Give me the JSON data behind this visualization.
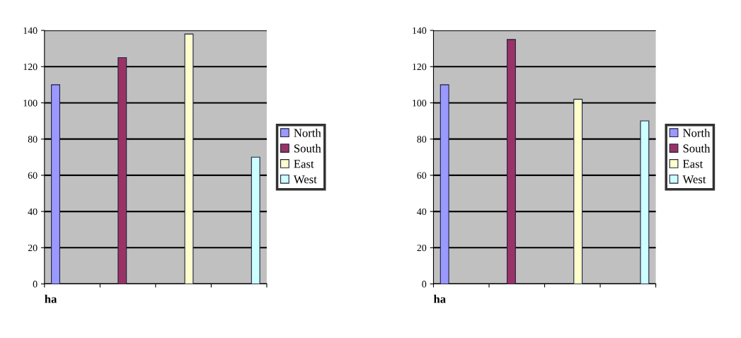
{
  "chart_data": [
    {
      "type": "bar",
      "categories": [
        null,
        null,
        null,
        null
      ],
      "xlabel": "ha",
      "ylim": [
        0,
        140
      ],
      "yticks": [
        0,
        20,
        40,
        60,
        80,
        100,
        120,
        140
      ],
      "grid": "y",
      "legend": "right",
      "series": [
        {
          "name": "North",
          "color": "#9999ff",
          "values": [
            110,
            null,
            null,
            null
          ]
        },
        {
          "name": "South",
          "color": "#993366",
          "values": [
            null,
            125,
            null,
            null
          ]
        },
        {
          "name": "East",
          "color": "#ffffcc",
          "values": [
            null,
            null,
            138,
            null
          ]
        },
        {
          "name": "West",
          "color": "#ccffff",
          "values": [
            null,
            null,
            null,
            70
          ]
        }
      ]
    },
    {
      "type": "bar",
      "categories": [
        null,
        null,
        null,
        null
      ],
      "xlabel": "ha",
      "ylim": [
        0,
        140
      ],
      "yticks": [
        0,
        20,
        40,
        60,
        80,
        100,
        120,
        140
      ],
      "grid": "y",
      "legend": "right",
      "series": [
        {
          "name": "North",
          "color": "#9999ff",
          "values": [
            110,
            null,
            null,
            null
          ]
        },
        {
          "name": "South",
          "color": "#993366",
          "values": [
            null,
            135,
            null,
            null
          ]
        },
        {
          "name": "East",
          "color": "#ffffcc",
          "values": [
            null,
            null,
            102,
            null
          ]
        },
        {
          "name": "West",
          "color": "#ccffff",
          "values": [
            null,
            null,
            null,
            90
          ]
        }
      ]
    }
  ]
}
